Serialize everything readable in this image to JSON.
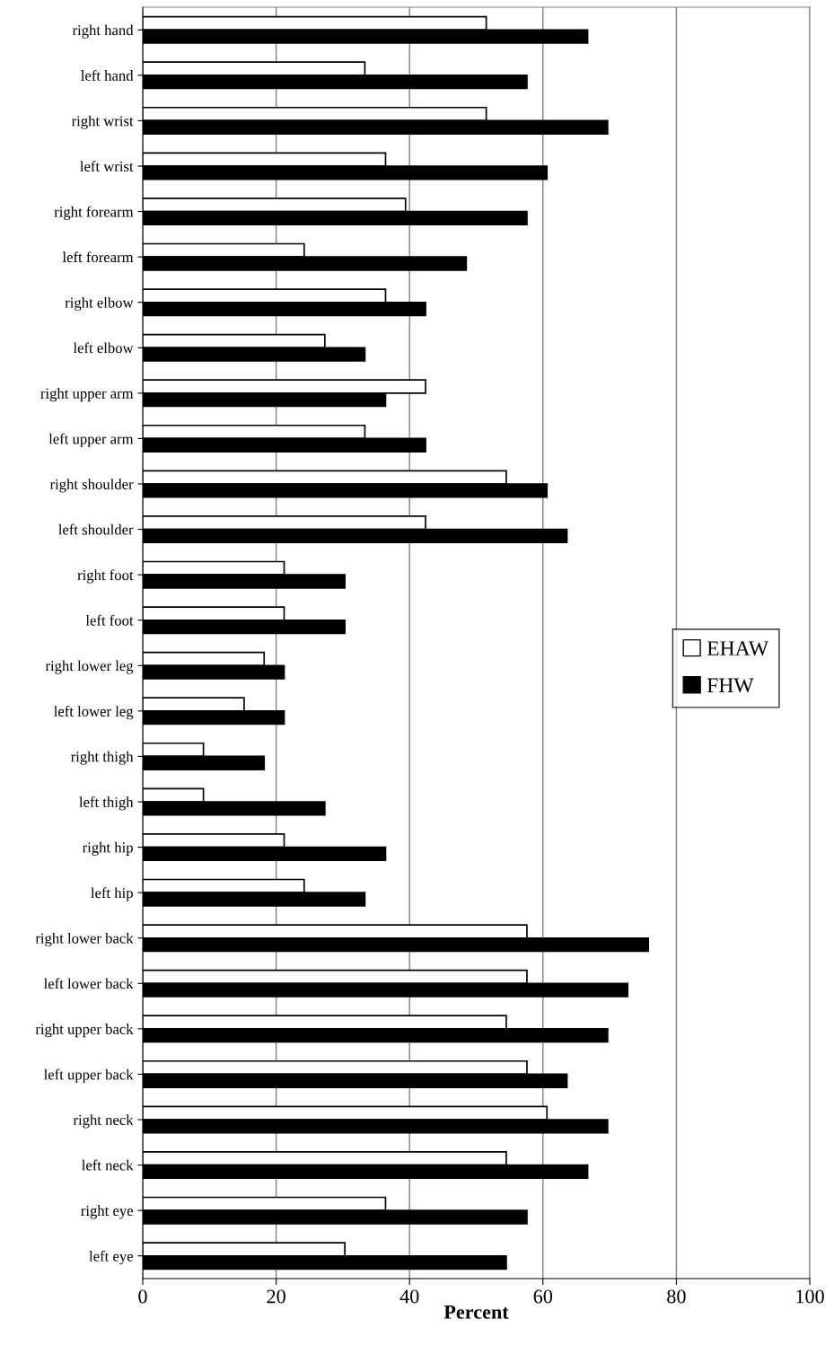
{
  "chart_data": {
    "type": "bar",
    "orientation": "horizontal",
    "xlabel": "Percent",
    "categories": [
      "right hand",
      "left hand",
      "right wrist",
      "left wrist",
      "right forearm",
      "left forearm",
      "right elbow",
      "left elbow",
      "right upper arm",
      "left upper arm",
      "right shoulder",
      "left shoulder",
      "right foot",
      "left foot",
      "right lower leg",
      "left lower leg",
      "right thigh",
      "left thigh",
      "right hip",
      "left hip",
      "right lower back",
      "left lower back",
      "right upper back",
      "left upper back",
      "right neck",
      "left neck",
      "right eye",
      "left eye"
    ],
    "series": [
      {
        "name": "EHAW",
        "color": "#ffffff",
        "values": [
          51.5,
          33.3,
          51.5,
          36.4,
          39.4,
          24.2,
          36.4,
          27.3,
          42.4,
          33.3,
          54.5,
          42.4,
          21.2,
          21.2,
          18.2,
          15.2,
          9.1,
          9.1,
          21.2,
          24.2,
          57.6,
          57.6,
          54.5,
          57.6,
          60.6,
          54.5,
          36.4,
          30.3
        ]
      },
      {
        "name": "FHW",
        "color": "#000000",
        "values": [
          66.7,
          57.6,
          69.7,
          60.6,
          57.6,
          48.5,
          42.4,
          33.3,
          36.4,
          42.4,
          60.6,
          63.6,
          30.3,
          30.3,
          21.2,
          21.2,
          18.2,
          27.3,
          36.4,
          33.3,
          75.8,
          72.7,
          69.7,
          63.6,
          69.7,
          66.7,
          57.6,
          54.5
        ]
      }
    ],
    "xlim": [
      0,
      100
    ],
    "xticks": [
      0,
      20,
      40,
      60,
      80,
      100
    ],
    "grid": "x",
    "legend": "right"
  }
}
